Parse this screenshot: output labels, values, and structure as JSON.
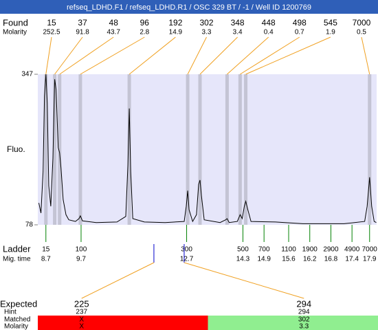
{
  "header": {
    "title": "refseq_LDHD.F1 / refseq_LDHD.R1 / OSC 329 BT / -1 / Well ID 1200769"
  },
  "chart_data": {
    "type": "line",
    "y_label": "Fluo.",
    "xlim": [
      8.47,
      18.1
    ],
    "ylim": [
      78,
      347
    ],
    "yticks": [
      78,
      347
    ],
    "background": "#e6e6fa",
    "x": [
      8.5,
      8.56,
      8.62,
      8.66,
      8.7,
      8.74,
      8.78,
      8.84,
      8.9,
      8.95,
      8.99,
      9.05,
      9.09,
      9.13,
      9.19,
      9.27,
      9.35,
      9.54,
      9.64,
      9.68,
      9.74,
      10.13,
      10.72,
      10.97,
      11.03,
      11.07,
      11.11,
      11.17,
      11.5,
      12.09,
      12.63,
      12.69,
      12.73,
      12.77,
      12.87,
      12.98,
      13.04,
      13.08,
      13.12,
      13.2,
      13.65,
      13.81,
      13.85,
      13.91,
      14.14,
      14.22,
      14.28,
      14.34,
      14.38,
      14.44,
      14.53,
      15.22,
      16.0,
      17.17,
      17.76,
      17.83,
      17.9,
      17.96,
      18.03,
      18.09
    ],
    "series": [
      {
        "color": "#000000",
        "values": [
          117,
          99,
          173,
          308,
          347,
          295,
          148,
          111,
          197,
          338,
          320,
          216,
          207,
          179,
          123,
          96,
          87,
          84,
          89,
          94,
          85,
          82,
          83,
          93,
          185,
          286,
          173,
          89,
          83,
          82,
          84,
          111,
          139,
          105,
          84,
          96,
          150,
          158,
          130,
          87,
          82,
          87,
          89,
          82,
          84,
          96,
          89,
          111,
          120,
          105,
          84,
          83,
          80,
          80,
          84,
          111,
          163,
          111,
          84,
          82
        ]
      }
    ]
  },
  "found": {
    "label": "Found",
    "molarity_label": "Molarity",
    "band_color": "#c4c4d4",
    "line_color": "#f0a020",
    "peaks": [
      {
        "size": 15,
        "molarity": 252.5,
        "time": 8.7
      },
      {
        "size": 37,
        "molarity": 91.8,
        "time": 8.95
      },
      {
        "size": 48,
        "molarity": 43.7,
        "time": 9.09
      },
      {
        "size": 96,
        "molarity": 2.8,
        "time": 9.68
      },
      {
        "size": 192,
        "molarity": 14.9,
        "time": 11.07
      },
      {
        "size": 302,
        "molarity": 3.3,
        "time": 12.73
      },
      {
        "size": 348,
        "molarity": 3.4,
        "time": 13.08
      },
      {
        "size": 448,
        "molarity": 0.4,
        "time": 13.85
      },
      {
        "size": 498,
        "molarity": 0.7,
        "time": 14.22
      },
      {
        "size": 545,
        "molarity": 1.9,
        "time": 14.38
      },
      {
        "size": 7000,
        "molarity": 0.5,
        "time": 17.9
      }
    ]
  },
  "ladder": {
    "label": "Ladder",
    "time_label": "Mig. time",
    "color": "#008000",
    "sizes": [
      15,
      100,
      300,
      500,
      700,
      1100,
      1900,
      2900,
      4900,
      7000
    ],
    "times": [
      8.7,
      9.7,
      12.7,
      14.3,
      14.9,
      15.6,
      16.2,
      16.8,
      17.4,
      17.9
    ]
  },
  "expected": {
    "label": "Expected",
    "hint_label": "Hint",
    "matched_label": "Matched",
    "molarity_label": "Molarity",
    "marker_color": "#0000cc",
    "items": [
      {
        "size": 225,
        "hint": 237,
        "matched": "X",
        "molarity": "X",
        "time": 11.77,
        "color": "#ff0000"
      },
      {
        "size": 294,
        "hint": 294,
        "matched": 302,
        "molarity": 3.3,
        "time": 12.63,
        "color": "#90ee90"
      }
    ]
  }
}
